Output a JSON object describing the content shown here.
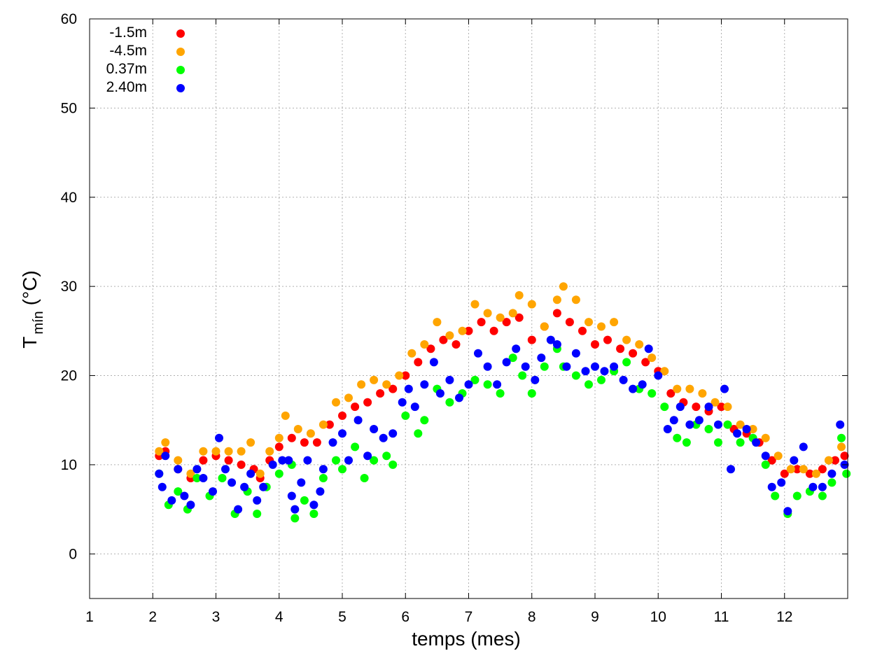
{
  "chart_data": {
    "type": "scatter",
    "xlabel": "temps (mes)",
    "ylabel_main": "T",
    "ylabel_sub": "mín",
    "ylabel_unit": "(°C)",
    "xlim": [
      1,
      13
    ],
    "ylim": [
      -5,
      60
    ],
    "x_ticks": [
      1,
      2,
      3,
      4,
      5,
      6,
      7,
      8,
      9,
      10,
      11,
      12
    ],
    "y_ticks": [
      0,
      10,
      20,
      30,
      40,
      50,
      60
    ],
    "grid": true,
    "legend_position": "top-left",
    "series": [
      {
        "name": "-1.5m",
        "color": "#ff0000",
        "points": [
          [
            2.1,
            11.0
          ],
          [
            2.2,
            11.5
          ],
          [
            2.4,
            9.5
          ],
          [
            2.6,
            8.5
          ],
          [
            2.8,
            10.5
          ],
          [
            3.0,
            11.0
          ],
          [
            3.2,
            10.5
          ],
          [
            3.4,
            10.0
          ],
          [
            3.6,
            9.5
          ],
          [
            3.7,
            8.5
          ],
          [
            3.85,
            10.5
          ],
          [
            4.0,
            12.0
          ],
          [
            4.2,
            13.0
          ],
          [
            4.4,
            12.5
          ],
          [
            4.6,
            12.5
          ],
          [
            4.8,
            14.5
          ],
          [
            5.0,
            15.5
          ],
          [
            5.2,
            16.5
          ],
          [
            5.4,
            17.0
          ],
          [
            5.6,
            18.0
          ],
          [
            5.8,
            18.5
          ],
          [
            6.0,
            20.0
          ],
          [
            6.2,
            21.5
          ],
          [
            6.4,
            23.0
          ],
          [
            6.6,
            24.0
          ],
          [
            6.8,
            23.5
          ],
          [
            7.0,
            25.0
          ],
          [
            7.2,
            26.0
          ],
          [
            7.4,
            25.0
          ],
          [
            7.6,
            26.0
          ],
          [
            7.8,
            26.5
          ],
          [
            8.0,
            24.0
          ],
          [
            8.2,
            25.5
          ],
          [
            8.4,
            27.0
          ],
          [
            8.6,
            26.0
          ],
          [
            8.8,
            25.0
          ],
          [
            9.0,
            23.5
          ],
          [
            9.2,
            24.0
          ],
          [
            9.4,
            23.0
          ],
          [
            9.6,
            22.5
          ],
          [
            9.8,
            21.5
          ],
          [
            10.0,
            20.5
          ],
          [
            10.2,
            18.0
          ],
          [
            10.4,
            17.0
          ],
          [
            10.6,
            16.5
          ],
          [
            10.8,
            16.0
          ],
          [
            11.0,
            16.5
          ],
          [
            11.2,
            14.0
          ],
          [
            11.4,
            13.5
          ],
          [
            11.6,
            12.5
          ],
          [
            11.8,
            10.5
          ],
          [
            12.0,
            9.0
          ],
          [
            12.2,
            9.5
          ],
          [
            12.4,
            9.0
          ],
          [
            12.6,
            9.5
          ],
          [
            12.8,
            10.5
          ],
          [
            12.95,
            11.0
          ]
        ]
      },
      {
        "name": "-4.5m",
        "color": "#ffa500",
        "points": [
          [
            2.1,
            11.5
          ],
          [
            2.2,
            12.5
          ],
          [
            2.4,
            10.5
          ],
          [
            2.6,
            9.0
          ],
          [
            2.8,
            11.5
          ],
          [
            3.0,
            11.5
          ],
          [
            3.2,
            11.5
          ],
          [
            3.4,
            11.5
          ],
          [
            3.55,
            12.5
          ],
          [
            3.7,
            9.0
          ],
          [
            3.85,
            11.5
          ],
          [
            4.0,
            13.0
          ],
          [
            4.1,
            15.5
          ],
          [
            4.3,
            14.0
          ],
          [
            4.5,
            13.5
          ],
          [
            4.7,
            14.5
          ],
          [
            4.9,
            17.0
          ],
          [
            5.1,
            17.5
          ],
          [
            5.3,
            19.0
          ],
          [
            5.5,
            19.5
          ],
          [
            5.7,
            19.0
          ],
          [
            5.9,
            20.0
          ],
          [
            6.1,
            22.5
          ],
          [
            6.3,
            23.5
          ],
          [
            6.5,
            26.0
          ],
          [
            6.7,
            24.5
          ],
          [
            6.9,
            25.0
          ],
          [
            7.1,
            28.0
          ],
          [
            7.3,
            27.0
          ],
          [
            7.5,
            26.5
          ],
          [
            7.7,
            27.0
          ],
          [
            7.8,
            29.0
          ],
          [
            8.0,
            28.0
          ],
          [
            8.2,
            25.5
          ],
          [
            8.4,
            28.5
          ],
          [
            8.5,
            30.0
          ],
          [
            8.7,
            28.5
          ],
          [
            8.9,
            26.0
          ],
          [
            9.1,
            25.5
          ],
          [
            9.3,
            26.0
          ],
          [
            9.5,
            24.0
          ],
          [
            9.7,
            23.5
          ],
          [
            9.9,
            22.0
          ],
          [
            10.1,
            20.5
          ],
          [
            10.3,
            18.5
          ],
          [
            10.5,
            18.5
          ],
          [
            10.7,
            18.0
          ],
          [
            10.9,
            17.0
          ],
          [
            11.1,
            16.5
          ],
          [
            11.3,
            14.5
          ],
          [
            11.5,
            14.0
          ],
          [
            11.7,
            13.0
          ],
          [
            11.9,
            11.0
          ],
          [
            12.1,
            9.5
          ],
          [
            12.3,
            9.5
          ],
          [
            12.5,
            9.0
          ],
          [
            12.7,
            10.5
          ],
          [
            12.9,
            12.0
          ]
        ]
      },
      {
        "name": "0.37m",
        "color": "#00ff00",
        "points": [
          [
            2.1,
            9.0
          ],
          [
            2.25,
            5.5
          ],
          [
            2.4,
            7.0
          ],
          [
            2.55,
            5.0
          ],
          [
            2.7,
            8.5
          ],
          [
            2.9,
            6.5
          ],
          [
            3.1,
            8.5
          ],
          [
            3.3,
            4.5
          ],
          [
            3.5,
            7.0
          ],
          [
            3.65,
            4.5
          ],
          [
            3.8,
            7.5
          ],
          [
            4.0,
            9.0
          ],
          [
            4.2,
            10.0
          ],
          [
            4.25,
            4.0
          ],
          [
            4.4,
            6.0
          ],
          [
            4.55,
            4.5
          ],
          [
            4.7,
            8.5
          ],
          [
            4.9,
            10.5
          ],
          [
            5.0,
            9.5
          ],
          [
            5.2,
            12.0
          ],
          [
            5.35,
            8.5
          ],
          [
            5.5,
            10.5
          ],
          [
            5.7,
            11.0
          ],
          [
            5.8,
            10.0
          ],
          [
            6.0,
            15.5
          ],
          [
            6.2,
            13.5
          ],
          [
            6.3,
            15.0
          ],
          [
            6.5,
            18.5
          ],
          [
            6.7,
            17.0
          ],
          [
            6.9,
            18.0
          ],
          [
            7.1,
            19.5
          ],
          [
            7.3,
            19.0
          ],
          [
            7.5,
            18.0
          ],
          [
            7.7,
            22.0
          ],
          [
            7.85,
            20.0
          ],
          [
            8.0,
            18.0
          ],
          [
            8.2,
            21.0
          ],
          [
            8.4,
            23.0
          ],
          [
            8.5,
            21.0
          ],
          [
            8.7,
            20.0
          ],
          [
            8.9,
            19.0
          ],
          [
            9.1,
            19.5
          ],
          [
            9.3,
            20.5
          ],
          [
            9.5,
            21.5
          ],
          [
            9.7,
            18.5
          ],
          [
            9.9,
            18.0
          ],
          [
            10.1,
            16.5
          ],
          [
            10.3,
            13.0
          ],
          [
            10.45,
            12.5
          ],
          [
            10.6,
            14.5
          ],
          [
            10.8,
            14.0
          ],
          [
            10.95,
            12.5
          ],
          [
            11.1,
            14.5
          ],
          [
            11.3,
            12.5
          ],
          [
            11.5,
            13.0
          ],
          [
            11.7,
            10.0
          ],
          [
            11.85,
            6.5
          ],
          [
            12.05,
            4.5
          ],
          [
            12.2,
            6.5
          ],
          [
            12.4,
            7.0
          ],
          [
            12.6,
            6.5
          ],
          [
            12.75,
            8.0
          ],
          [
            12.9,
            13.0
          ],
          [
            12.98,
            9.0
          ]
        ]
      },
      {
        "name": "2.40m",
        "color": "#0000ff",
        "points": [
          [
            2.1,
            9.0
          ],
          [
            2.15,
            7.5
          ],
          [
            2.2,
            11.0
          ],
          [
            2.3,
            6.0
          ],
          [
            2.4,
            9.5
          ],
          [
            2.5,
            6.5
          ],
          [
            2.6,
            5.5
          ],
          [
            2.7,
            9.5
          ],
          [
            2.8,
            8.5
          ],
          [
            2.95,
            7.0
          ],
          [
            3.05,
            13.0
          ],
          [
            3.15,
            9.5
          ],
          [
            3.25,
            8.0
          ],
          [
            3.35,
            5.0
          ],
          [
            3.45,
            7.5
          ],
          [
            3.55,
            9.0
          ],
          [
            3.65,
            6.0
          ],
          [
            3.75,
            7.5
          ],
          [
            3.9,
            10.0
          ],
          [
            4.05,
            10.5
          ],
          [
            4.15,
            10.5
          ],
          [
            4.2,
            6.5
          ],
          [
            4.25,
            5.0
          ],
          [
            4.35,
            8.0
          ],
          [
            4.45,
            10.5
          ],
          [
            4.55,
            5.5
          ],
          [
            4.65,
            7.0
          ],
          [
            4.7,
            9.5
          ],
          [
            4.85,
            12.5
          ],
          [
            5.0,
            13.5
          ],
          [
            5.1,
            10.5
          ],
          [
            5.25,
            15.0
          ],
          [
            5.4,
            11.0
          ],
          [
            5.5,
            14.0
          ],
          [
            5.65,
            13.0
          ],
          [
            5.8,
            13.5
          ],
          [
            5.95,
            17.0
          ],
          [
            6.05,
            18.5
          ],
          [
            6.15,
            16.5
          ],
          [
            6.3,
            19.0
          ],
          [
            6.45,
            21.5
          ],
          [
            6.55,
            18.0
          ],
          [
            6.7,
            19.5
          ],
          [
            6.85,
            17.5
          ],
          [
            7.0,
            19.0
          ],
          [
            7.15,
            22.5
          ],
          [
            7.3,
            21.0
          ],
          [
            7.45,
            19.0
          ],
          [
            7.6,
            21.5
          ],
          [
            7.75,
            23.0
          ],
          [
            7.9,
            21.0
          ],
          [
            8.05,
            19.5
          ],
          [
            8.15,
            22.0
          ],
          [
            8.3,
            24.0
          ],
          [
            8.4,
            23.5
          ],
          [
            8.55,
            21.0
          ],
          [
            8.7,
            22.5
          ],
          [
            8.85,
            20.5
          ],
          [
            9.0,
            21.0
          ],
          [
            9.15,
            20.5
          ],
          [
            9.3,
            21.0
          ],
          [
            9.45,
            19.5
          ],
          [
            9.6,
            18.5
          ],
          [
            9.75,
            19.0
          ],
          [
            9.85,
            23.0
          ],
          [
            10.0,
            20.0
          ],
          [
            10.15,
            14.0
          ],
          [
            10.25,
            15.0
          ],
          [
            10.35,
            16.5
          ],
          [
            10.5,
            14.5
          ],
          [
            10.65,
            15.0
          ],
          [
            10.8,
            16.5
          ],
          [
            10.95,
            14.5
          ],
          [
            11.05,
            18.5
          ],
          [
            11.15,
            9.5
          ],
          [
            11.25,
            13.5
          ],
          [
            11.4,
            14.0
          ],
          [
            11.55,
            12.5
          ],
          [
            11.7,
            11.0
          ],
          [
            11.8,
            7.5
          ],
          [
            11.95,
            8.0
          ],
          [
            12.05,
            4.8
          ],
          [
            12.15,
            10.5
          ],
          [
            12.3,
            12.0
          ],
          [
            12.45,
            7.5
          ],
          [
            12.6,
            7.5
          ],
          [
            12.75,
            9.0
          ],
          [
            12.88,
            14.5
          ],
          [
            12.95,
            10.0
          ]
        ]
      }
    ]
  }
}
